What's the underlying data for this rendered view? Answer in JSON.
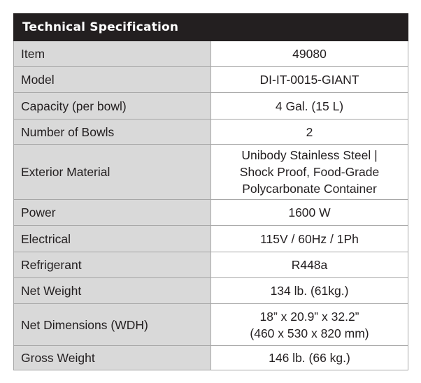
{
  "header": "Technical Specification",
  "rows": [
    {
      "label": "Item",
      "value": [
        "49080"
      ]
    },
    {
      "label": "Model",
      "value": [
        "DI-IT-0015-GIANT"
      ]
    },
    {
      "label": "Capacity (per bowl)",
      "value": [
        "4 Gal. (15 L)"
      ]
    },
    {
      "label": "Number of Bowls",
      "value": [
        "2"
      ]
    },
    {
      "label": "Exterior Material",
      "value": [
        "Unibody Stainless Steel |",
        "Shock Proof, Food-Grade",
        "Polycarbonate Container"
      ]
    },
    {
      "label": "Power",
      "value": [
        "1600 W"
      ]
    },
    {
      "label": "Electrical",
      "value": [
        "115V / 60Hz / 1Ph"
      ]
    },
    {
      "label": "Refrigerant",
      "value": [
        "R448a"
      ]
    },
    {
      "label": "Net Weight",
      "value": [
        "134 lb. (61kg.)"
      ]
    },
    {
      "label": "Net Dimensions (WDH)",
      "value": [
        "18” x 20.9” x 32.2”",
        "(460 x 530 x 820 mm)"
      ]
    },
    {
      "label": "Gross Weight",
      "value": [
        "146 lb. (66 kg.)"
      ]
    }
  ]
}
